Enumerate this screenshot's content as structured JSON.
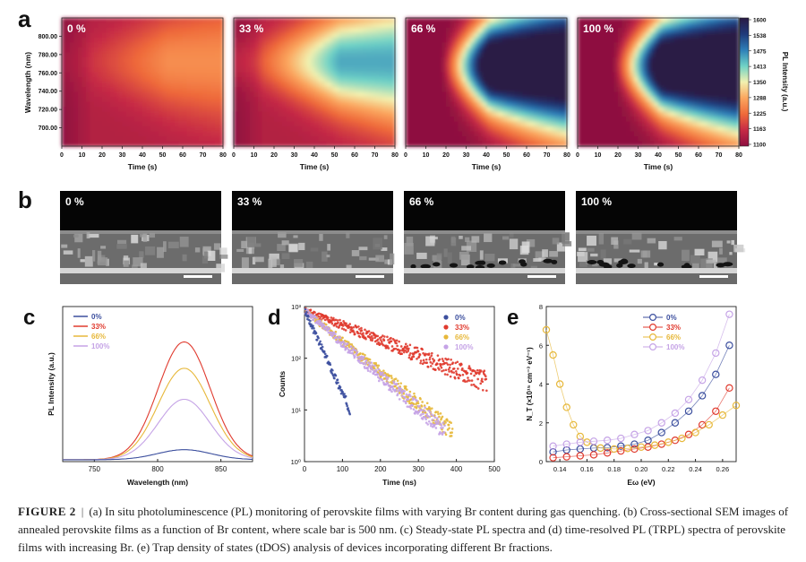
{
  "panels": {
    "a": {
      "letter": "a",
      "maps": [
        {
          "label": "0 %",
          "peak": 0.18
        },
        {
          "label": "33 %",
          "peak": 0.45
        },
        {
          "label": "66 %",
          "peak": 1.0
        },
        {
          "label": "100 %",
          "peak": 0.98
        }
      ],
      "ylabel": "Wavelength (nm)",
      "xlabel": "Time (s)",
      "yticks": [
        "800.00",
        "780.00",
        "760.00",
        "740.00",
        "720.00",
        "700.00"
      ],
      "xticks": [
        "0",
        "10",
        "20",
        "30",
        "40",
        "50",
        "60",
        "70",
        "80"
      ],
      "colorbar": {
        "title": "PL Intensity (a.u.)",
        "ticks": [
          "1600",
          "1538",
          "1475",
          "1413",
          "1350",
          "1288",
          "1225",
          "1163",
          "1100"
        ],
        "colors": [
          "#2a1a45",
          "#203a7a",
          "#2e7fb8",
          "#6fd2c6",
          "#f2f1b0",
          "#fba65e",
          "#ef6a3a",
          "#c62a45",
          "#8e1040"
        ]
      }
    },
    "b": {
      "letter": "b",
      "images": [
        {
          "label": "0 %"
        },
        {
          "label": "33 %"
        },
        {
          "label": "66 %"
        },
        {
          "label": "100 %"
        }
      ]
    },
    "c": {
      "letter": "c"
    },
    "d": {
      "letter": "d"
    },
    "e": {
      "letter": "e"
    }
  },
  "chart_data": [
    {
      "type": "line",
      "title": "Steady-state PL spectra",
      "xlabel": "Wavelength (nm)",
      "ylabel": "PL Intensity (a.u.)",
      "xlim": [
        725,
        875
      ],
      "xticks": [
        750,
        800,
        850
      ],
      "ylim": [
        0,
        1
      ],
      "series": [
        {
          "name": "0%",
          "color": "#3c4f9e",
          "center": 821,
          "width": 30,
          "amplitude": 0.065,
          "baseline": 0.012
        },
        {
          "name": "33%",
          "color": "#e03a2e",
          "center": 821,
          "width": 29,
          "amplitude": 0.76,
          "baseline": 0.012
        },
        {
          "name": "66%",
          "color": "#e7b83a",
          "center": 821,
          "width": 29,
          "amplitude": 0.59,
          "baseline": 0.012
        },
        {
          "name": "100%",
          "color": "#c5a3e6",
          "center": 821,
          "width": 29,
          "amplitude": 0.39,
          "baseline": 0.012
        }
      ]
    },
    {
      "type": "scatter",
      "title": "Time-resolved PL",
      "xlabel": "Time (ns)",
      "ylabel": "Counts",
      "xlim": [
        0,
        500
      ],
      "xticks": [
        0,
        100,
        200,
        300,
        400,
        500
      ],
      "yscale": "log",
      "ylim": [
        1,
        1000
      ],
      "yticks": [
        "10⁰",
        "10¹",
        "10²",
        "10³"
      ],
      "series": [
        {
          "name": "0%",
          "color": "#3c4f9e",
          "tau_ns": 27,
          "t_end_ns": 120
        },
        {
          "name": "33%",
          "color": "#e03a2e",
          "tau_ns": 150,
          "t_end_ns": 480
        },
        {
          "name": "66%",
          "color": "#e7b83a",
          "tau_ns": 72,
          "t_end_ns": 390
        },
        {
          "name": "100%",
          "color": "#c5a3e6",
          "tau_ns": 68,
          "t_end_ns": 370
        }
      ]
    },
    {
      "type": "scatter",
      "title": "Trap density of states",
      "xlabel": "Eω (eV)",
      "ylabel": "N_T (×10¹⁵ cm⁻³ eV⁻¹)",
      "xlim": [
        0.13,
        0.27
      ],
      "xticks": [
        0.14,
        0.16,
        0.18,
        0.2,
        0.22,
        0.24,
        0.26
      ],
      "ylim": [
        0,
        8
      ],
      "yticks": [
        0,
        2,
        4,
        6,
        8
      ],
      "series": [
        {
          "name": "0%",
          "color": "#3c4f9e",
          "x": [
            0.135,
            0.145,
            0.155,
            0.165,
            0.175,
            0.185,
            0.195,
            0.205,
            0.215,
            0.225,
            0.235,
            0.245,
            0.255,
            0.265
          ],
          "y": [
            0.5,
            0.6,
            0.65,
            0.7,
            0.72,
            0.8,
            0.9,
            1.1,
            1.5,
            2.0,
            2.6,
            3.4,
            4.5,
            6.0
          ]
        },
        {
          "name": "33%",
          "color": "#e03a2e",
          "x": [
            0.135,
            0.145,
            0.155,
            0.165,
            0.175,
            0.185,
            0.195,
            0.205,
            0.215,
            0.225,
            0.235,
            0.245,
            0.255,
            0.265
          ],
          "y": [
            0.2,
            0.25,
            0.3,
            0.35,
            0.45,
            0.55,
            0.65,
            0.75,
            0.9,
            1.1,
            1.4,
            1.9,
            2.6,
            3.8
          ]
        },
        {
          "name": "66%",
          "color": "#e7b83a",
          "x": [
            0.13,
            0.135,
            0.14,
            0.145,
            0.15,
            0.155,
            0.16,
            0.17,
            0.18,
            0.19,
            0.2,
            0.21,
            0.22,
            0.23,
            0.24,
            0.25,
            0.26,
            0.27
          ],
          "y": [
            6.8,
            5.5,
            4.0,
            2.8,
            1.9,
            1.3,
            1.0,
            0.7,
            0.65,
            0.68,
            0.75,
            0.85,
            1.0,
            1.2,
            1.5,
            1.9,
            2.4,
            2.9
          ]
        },
        {
          "name": "100%",
          "color": "#c5a3e6",
          "x": [
            0.135,
            0.145,
            0.155,
            0.165,
            0.175,
            0.185,
            0.195,
            0.205,
            0.215,
            0.225,
            0.235,
            0.245,
            0.255,
            0.265
          ],
          "y": [
            0.8,
            0.9,
            1.0,
            1.05,
            1.1,
            1.2,
            1.4,
            1.6,
            2.0,
            2.5,
            3.2,
            4.2,
            5.6,
            7.6
          ]
        }
      ]
    }
  ],
  "caption": {
    "label": "FIGURE 2",
    "separator": "|",
    "text": "(a) In situ photoluminescence (PL) monitoring of perovskite films with varying Br content during gas quenching. (b) Cross-sectional SEM images of annealed perovskite films as a function of Br content, where scale bar is 500 nm. (c) Steady-state PL spectra and (d) time-resolved PL (TRPL) spectra of perovskite films with increasing Br. (e) Trap density of states (tDOS) analysis of devices incorporating different Br fractions."
  }
}
